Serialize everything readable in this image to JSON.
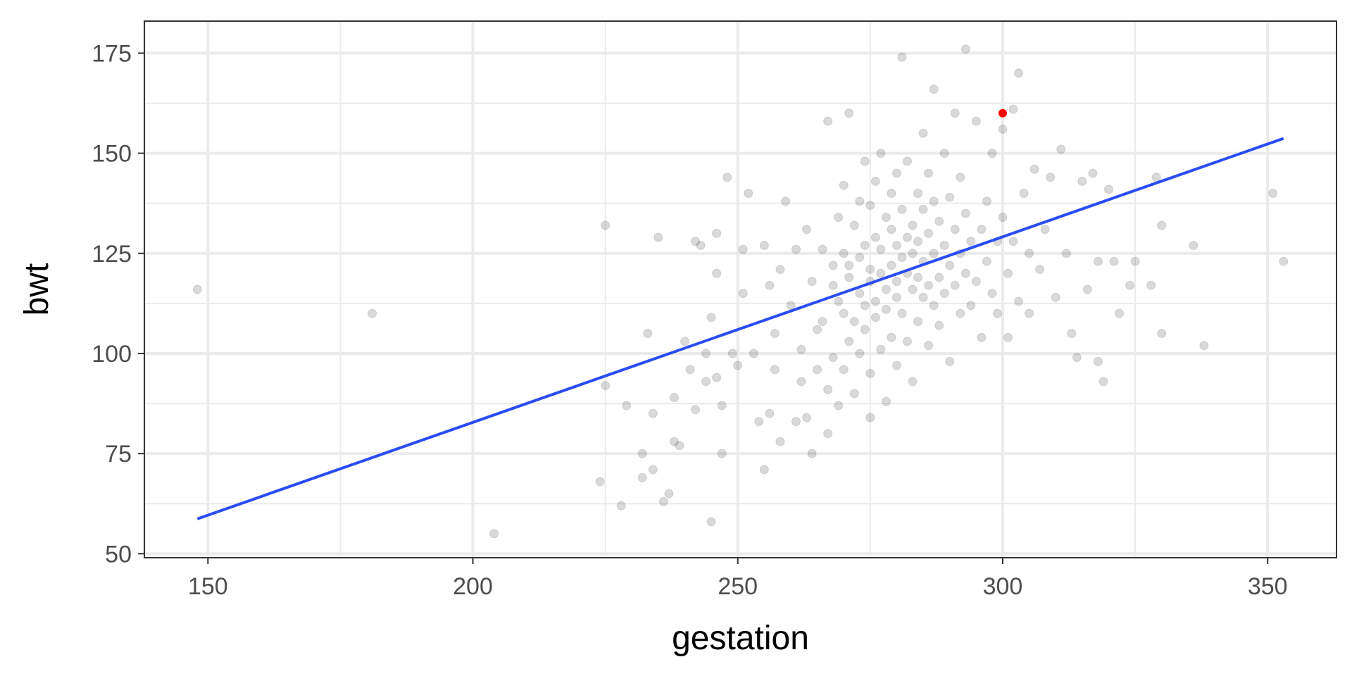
{
  "chart_data": {
    "type": "scatter",
    "xlabel": "gestation",
    "ylabel": "bwt",
    "xlim": [
      138,
      363
    ],
    "ylim": [
      49,
      183
    ],
    "x_ticks": [
      150,
      200,
      250,
      300,
      350
    ],
    "y_ticks": [
      50,
      75,
      100,
      125,
      150,
      175
    ],
    "x_tick_labels": [
      "150",
      "200",
      "250",
      "300",
      "350"
    ],
    "y_tick_labels": [
      "50",
      "75",
      "100",
      "125",
      "150",
      "175"
    ],
    "grid": true,
    "legend": "none",
    "colors": {
      "points": "#000000",
      "highlight": "#ff0000",
      "line": "#2a4cf5",
      "grid": "#ebebeb",
      "panel_border": "#333333"
    },
    "series": [
      {
        "type": "scatter",
        "alpha": 0.15,
        "points": [
          [
            148,
            116
          ],
          [
            181,
            110
          ],
          [
            204,
            55
          ],
          [
            224,
            68
          ],
          [
            225,
            92
          ],
          [
            225,
            132
          ],
          [
            228,
            62
          ],
          [
            229,
            87
          ],
          [
            232,
            75
          ],
          [
            232,
            69
          ],
          [
            233,
            105
          ],
          [
            234,
            85
          ],
          [
            234,
            71
          ],
          [
            235,
            129
          ],
          [
            236,
            63
          ],
          [
            237,
            65
          ],
          [
            238,
            78
          ],
          [
            238,
            89
          ],
          [
            239,
            77
          ],
          [
            240,
            103
          ],
          [
            241,
            96
          ],
          [
            242,
            128
          ],
          [
            242,
            86
          ],
          [
            243,
            127
          ],
          [
            244,
            100
          ],
          [
            244,
            93
          ],
          [
            245,
            109
          ],
          [
            245,
            58
          ],
          [
            246,
            120
          ],
          [
            246,
            94
          ],
          [
            246,
            130
          ],
          [
            247,
            75
          ],
          [
            247,
            87
          ],
          [
            248,
            144
          ],
          [
            249,
            100
          ],
          [
            250,
            97
          ],
          [
            251,
            126
          ],
          [
            251,
            115
          ],
          [
            252,
            140
          ],
          [
            253,
            100
          ],
          [
            254,
            83
          ],
          [
            255,
            127
          ],
          [
            255,
            71
          ],
          [
            256,
            85
          ],
          [
            256,
            117
          ],
          [
            257,
            96
          ],
          [
            257,
            105
          ],
          [
            258,
            78
          ],
          [
            258,
            121
          ],
          [
            259,
            138
          ],
          [
            260,
            112
          ],
          [
            261,
            83
          ],
          [
            261,
            126
          ],
          [
            262,
            93
          ],
          [
            262,
            101
          ],
          [
            263,
            84
          ],
          [
            263,
            131
          ],
          [
            264,
            118
          ],
          [
            264,
            75
          ],
          [
            265,
            96
          ],
          [
            265,
            106
          ],
          [
            266,
            108
          ],
          [
            266,
            126
          ],
          [
            267,
            158
          ],
          [
            267,
            91
          ],
          [
            267,
            80
          ],
          [
            268,
            122
          ],
          [
            268,
            117
          ],
          [
            268,
            99
          ],
          [
            269,
            134
          ],
          [
            269,
            113
          ],
          [
            269,
            87
          ],
          [
            270,
            142
          ],
          [
            270,
            125
          ],
          [
            270,
            110
          ],
          [
            270,
            96
          ],
          [
            271,
            160
          ],
          [
            271,
            103
          ],
          [
            271,
            122
          ],
          [
            271,
            119
          ],
          [
            272,
            108
          ],
          [
            272,
            90
          ],
          [
            272,
            132
          ],
          [
            273,
            115
          ],
          [
            273,
            124
          ],
          [
            273,
            100
          ],
          [
            273,
            138
          ],
          [
            274,
            148
          ],
          [
            274,
            112
          ],
          [
            274,
            127
          ],
          [
            274,
            106
          ],
          [
            275,
            118
          ],
          [
            275,
            137
          ],
          [
            275,
            95
          ],
          [
            275,
            84
          ],
          [
            275,
            121
          ],
          [
            276,
            129
          ],
          [
            276,
            109
          ],
          [
            276,
            143
          ],
          [
            276,
            113
          ],
          [
            277,
            120
          ],
          [
            277,
            150
          ],
          [
            277,
            101
          ],
          [
            277,
            126
          ],
          [
            278,
            116
          ],
          [
            278,
            134
          ],
          [
            278,
            88
          ],
          [
            278,
            111
          ],
          [
            279,
            131
          ],
          [
            279,
            122
          ],
          [
            279,
            104
          ],
          [
            279,
            140
          ],
          [
            280,
            118
          ],
          [
            280,
            127
          ],
          [
            280,
            97
          ],
          [
            280,
            145
          ],
          [
            280,
            114
          ],
          [
            281,
            174
          ],
          [
            281,
            124
          ],
          [
            281,
            110
          ],
          [
            281,
            136
          ],
          [
            282,
            120
          ],
          [
            282,
            129
          ],
          [
            282,
            103
          ],
          [
            282,
            148
          ],
          [
            283,
            116
          ],
          [
            283,
            132
          ],
          [
            283,
            125
          ],
          [
            283,
            93
          ],
          [
            284,
            140
          ],
          [
            284,
            119
          ],
          [
            284,
            108
          ],
          [
            284,
            128
          ],
          [
            285,
            123
          ],
          [
            285,
            136
          ],
          [
            285,
            114
          ],
          [
            285,
            155
          ],
          [
            286,
            117
          ],
          [
            286,
            130
          ],
          [
            286,
            102
          ],
          [
            286,
            145
          ],
          [
            287,
            125
          ],
          [
            287,
            112
          ],
          [
            287,
            138
          ],
          [
            287,
            166
          ],
          [
            288,
            119
          ],
          [
            288,
            133
          ],
          [
            288,
            107
          ],
          [
            289,
            127
          ],
          [
            289,
            115
          ],
          [
            289,
            150
          ],
          [
            290,
            122
          ],
          [
            290,
            139
          ],
          [
            290,
            98
          ],
          [
            291,
            131
          ],
          [
            291,
            117
          ],
          [
            291,
            160
          ],
          [
            292,
            125
          ],
          [
            292,
            110
          ],
          [
            292,
            144
          ],
          [
            293,
            176
          ],
          [
            293,
            120
          ],
          [
            293,
            135
          ],
          [
            294,
            128
          ],
          [
            294,
            112
          ],
          [
            295,
            158
          ],
          [
            295,
            118
          ],
          [
            296,
            131
          ],
          [
            296,
            104
          ],
          [
            297,
            138
          ],
          [
            297,
            123
          ],
          [
            298,
            150
          ],
          [
            298,
            115
          ],
          [
            299,
            128
          ],
          [
            299,
            110
          ],
          [
            300,
            156
          ],
          [
            300,
            134
          ],
          [
            301,
            120
          ],
          [
            301,
            104
          ],
          [
            302,
            161
          ],
          [
            302,
            128
          ],
          [
            303,
            113
          ],
          [
            303,
            170
          ],
          [
            304,
            140
          ],
          [
            305,
            125
          ],
          [
            305,
            110
          ],
          [
            306,
            146
          ],
          [
            307,
            121
          ],
          [
            308,
            131
          ],
          [
            309,
            144
          ],
          [
            310,
            114
          ],
          [
            311,
            151
          ],
          [
            312,
            125
          ],
          [
            313,
            105
          ],
          [
            314,
            99
          ],
          [
            315,
            143
          ],
          [
            316,
            116
          ],
          [
            317,
            145
          ],
          [
            318,
            123
          ],
          [
            318,
            98
          ],
          [
            319,
            93
          ],
          [
            320,
            141
          ],
          [
            321,
            123
          ],
          [
            322,
            110
          ],
          [
            324,
            117
          ],
          [
            325,
            123
          ],
          [
            328,
            117
          ],
          [
            329,
            144
          ],
          [
            330,
            105
          ],
          [
            330,
            132
          ],
          [
            336,
            127
          ],
          [
            338,
            102
          ],
          [
            351,
            140
          ],
          [
            353,
            123
          ]
        ]
      },
      {
        "type": "scatter",
        "highlight": true,
        "points": [
          [
            300,
            160
          ]
        ]
      },
      {
        "type": "line",
        "fit": "linear",
        "points": [
          [
            148,
            58.7
          ],
          [
            353,
            153.7
          ]
        ]
      }
    ]
  }
}
